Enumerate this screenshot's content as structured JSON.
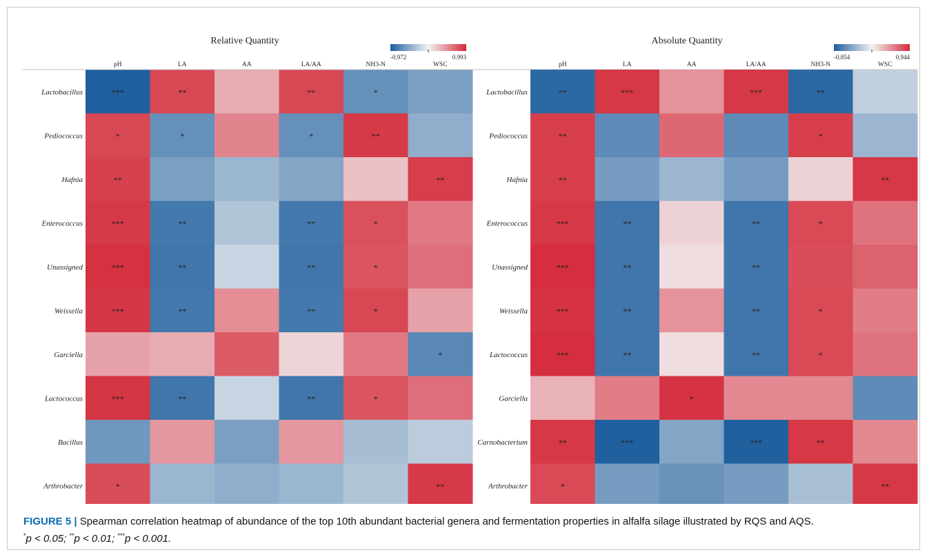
{
  "caption": {
    "label": "FIGURE 5 |",
    "text": "Spearman correlation heatmap of abundance of the top 10th abundant bacterial genera and fermentation properties in alfalfa silage illustrated by RQS and AQS.",
    "sig_line": {
      "s1": "*",
      "t1": "p < 0.05; ",
      "s2": "**",
      "t2": "p < 0.01; ",
      "s3": "***",
      "t3": "p < 0.001."
    }
  },
  "chart_data": [
    {
      "type": "heatmap",
      "title": "Relative Quantity",
      "columns": [
        "pH",
        "LA",
        "AA",
        "LA/AA",
        "NH3-N",
        "WSC"
      ],
      "rows": [
        "Lactobacillus",
        "Pediococcus",
        "Hafnia",
        "Enterococcus",
        "Unassigned",
        "Weissella",
        "Garciella",
        "Lactococcus",
        "Bacillus",
        "Arthrobacter"
      ],
      "colorbar": {
        "min": -0.972,
        "max": 0.993,
        "min_label": "-0.972",
        "max_label": "0.993",
        "low_color": "#1f5f9e",
        "mid_color": "#f2f2f2",
        "high_color": "#d42a3a"
      },
      "values": [
        [
          -0.97,
          0.85,
          0.35,
          0.85,
          -0.65,
          -0.55
        ],
        [
          0.85,
          -0.65,
          0.55,
          -0.65,
          0.92,
          -0.45
        ],
        [
          0.88,
          -0.55,
          -0.4,
          -0.5,
          0.25,
          0.9
        ],
        [
          0.92,
          -0.8,
          -0.3,
          -0.8,
          0.8,
          0.6
        ],
        [
          0.96,
          -0.82,
          -0.2,
          -0.82,
          0.78,
          0.65
        ],
        [
          0.93,
          -0.8,
          0.5,
          -0.8,
          0.85,
          0.4
        ],
        [
          0.4,
          0.35,
          0.75,
          0.15,
          0.6,
          -0.7
        ],
        [
          0.94,
          -0.82,
          -0.2,
          -0.82,
          0.78,
          0.65
        ],
        [
          -0.6,
          0.45,
          -0.55,
          0.45,
          -0.35,
          -0.25
        ],
        [
          0.82,
          -0.4,
          -0.45,
          -0.4,
          -0.3,
          0.92
        ]
      ],
      "significance": [
        [
          "***",
          "**",
          "",
          "**",
          "*",
          ""
        ],
        [
          "*",
          "*",
          "",
          "*",
          "**",
          ""
        ],
        [
          "**",
          "",
          "",
          "",
          "",
          "**"
        ],
        [
          "***",
          "**",
          "",
          "**",
          "*",
          ""
        ],
        [
          "***",
          "**",
          "",
          "**",
          "*",
          ""
        ],
        [
          "***",
          "**",
          "",
          "**",
          "*",
          ""
        ],
        [
          "",
          "",
          "",
          "",
          "",
          "*"
        ],
        [
          "***",
          "**",
          "",
          "**",
          "*",
          ""
        ],
        [
          "",
          "",
          "",
          "",
          "",
          ""
        ],
        [
          "*",
          "",
          "",
          "",
          "",
          "**"
        ]
      ]
    },
    {
      "type": "heatmap",
      "title": "Absolute Quantity",
      "columns": [
        "pH",
        "LA",
        "AA",
        "LA/AA",
        "NH3-N",
        "WSC"
      ],
      "rows": [
        "Lactobacillus",
        "Pediococcus",
        "Hafnia",
        "Enterococcus",
        "Unassigned",
        "Weissella",
        "Lactococcus",
        "Garciella",
        "Carnobacterium",
        "Arthrobacter"
      ],
      "colorbar": {
        "min": -0.854,
        "max": 0.944,
        "min_label": "-0.854",
        "max_label": "0.944",
        "low_color": "#1f5f9e",
        "mid_color": "#f2f2f2",
        "high_color": "#d42a3a"
      },
      "values": [
        [
          -0.8,
          0.88,
          0.45,
          0.88,
          -0.8,
          -0.2
        ],
        [
          0.85,
          -0.6,
          0.65,
          -0.6,
          0.85,
          -0.35
        ],
        [
          0.85,
          -0.5,
          -0.35,
          -0.5,
          0.15,
          0.88
        ],
        [
          0.88,
          -0.72,
          0.15,
          -0.72,
          0.8,
          0.6
        ],
        [
          0.92,
          -0.72,
          0.1,
          -0.72,
          0.78,
          0.68
        ],
        [
          0.9,
          -0.72,
          0.45,
          -0.72,
          0.8,
          0.55
        ],
        [
          0.92,
          -0.72,
          0.1,
          -0.72,
          0.8,
          0.6
        ],
        [
          0.3,
          0.55,
          0.9,
          0.5,
          0.5,
          -0.6
        ],
        [
          0.88,
          -0.85,
          -0.45,
          -0.85,
          0.88,
          0.5
        ],
        [
          0.8,
          -0.5,
          -0.55,
          -0.5,
          -0.3,
          0.88
        ]
      ],
      "significance": [
        [
          "**",
          "***",
          "",
          "***",
          "**",
          ""
        ],
        [
          "**",
          "",
          "",
          "",
          "*",
          ""
        ],
        [
          "**",
          "",
          "",
          "",
          "",
          "**"
        ],
        [
          "***",
          "**",
          "",
          "**",
          "*",
          ""
        ],
        [
          "***",
          "**",
          "",
          "**",
          "",
          ""
        ],
        [
          "***",
          "**",
          "",
          "**",
          "*",
          ""
        ],
        [
          "***",
          "**",
          "",
          "**",
          "*",
          ""
        ],
        [
          "",
          "",
          "*",
          "",
          "",
          ""
        ],
        [
          "**",
          "***",
          "",
          "***",
          "**",
          ""
        ],
        [
          "*",
          "",
          "",
          "",
          "",
          "**"
        ]
      ]
    }
  ]
}
